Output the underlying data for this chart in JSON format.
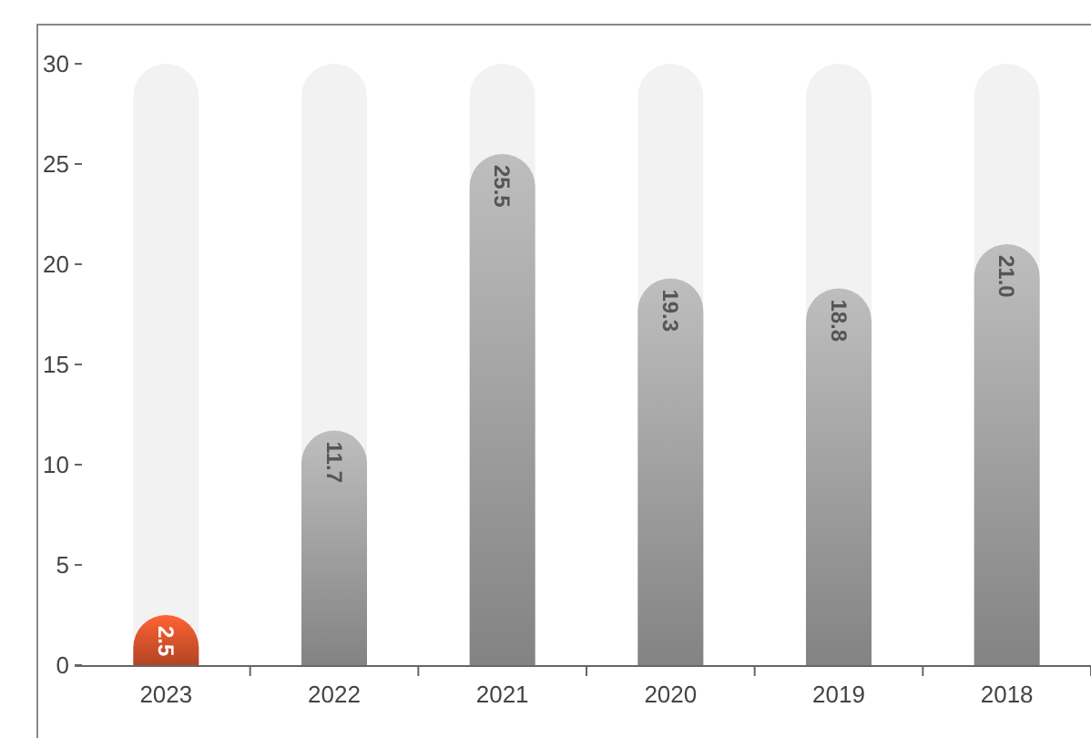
{
  "chart_data": {
    "type": "bar",
    "categories": [
      "2023",
      "2022",
      "2021",
      "2020",
      "2019",
      "2018"
    ],
    "values": [
      2.5,
      11.7,
      25.5,
      19.3,
      18.8,
      21.0
    ],
    "colors": [
      "#e4572e",
      "#a8a8a8",
      "#a8a8a8",
      "#a8a8a8",
      "#a8a8a8",
      "#a8a8a8"
    ],
    "value_labels": [
      "2.5",
      "11.7",
      "25.5",
      "19.3",
      "18.8",
      "21.0"
    ],
    "ylim": [
      0,
      30
    ],
    "yticks": [
      0,
      5,
      10,
      15,
      20,
      25,
      30
    ],
    "grid": false
  }
}
